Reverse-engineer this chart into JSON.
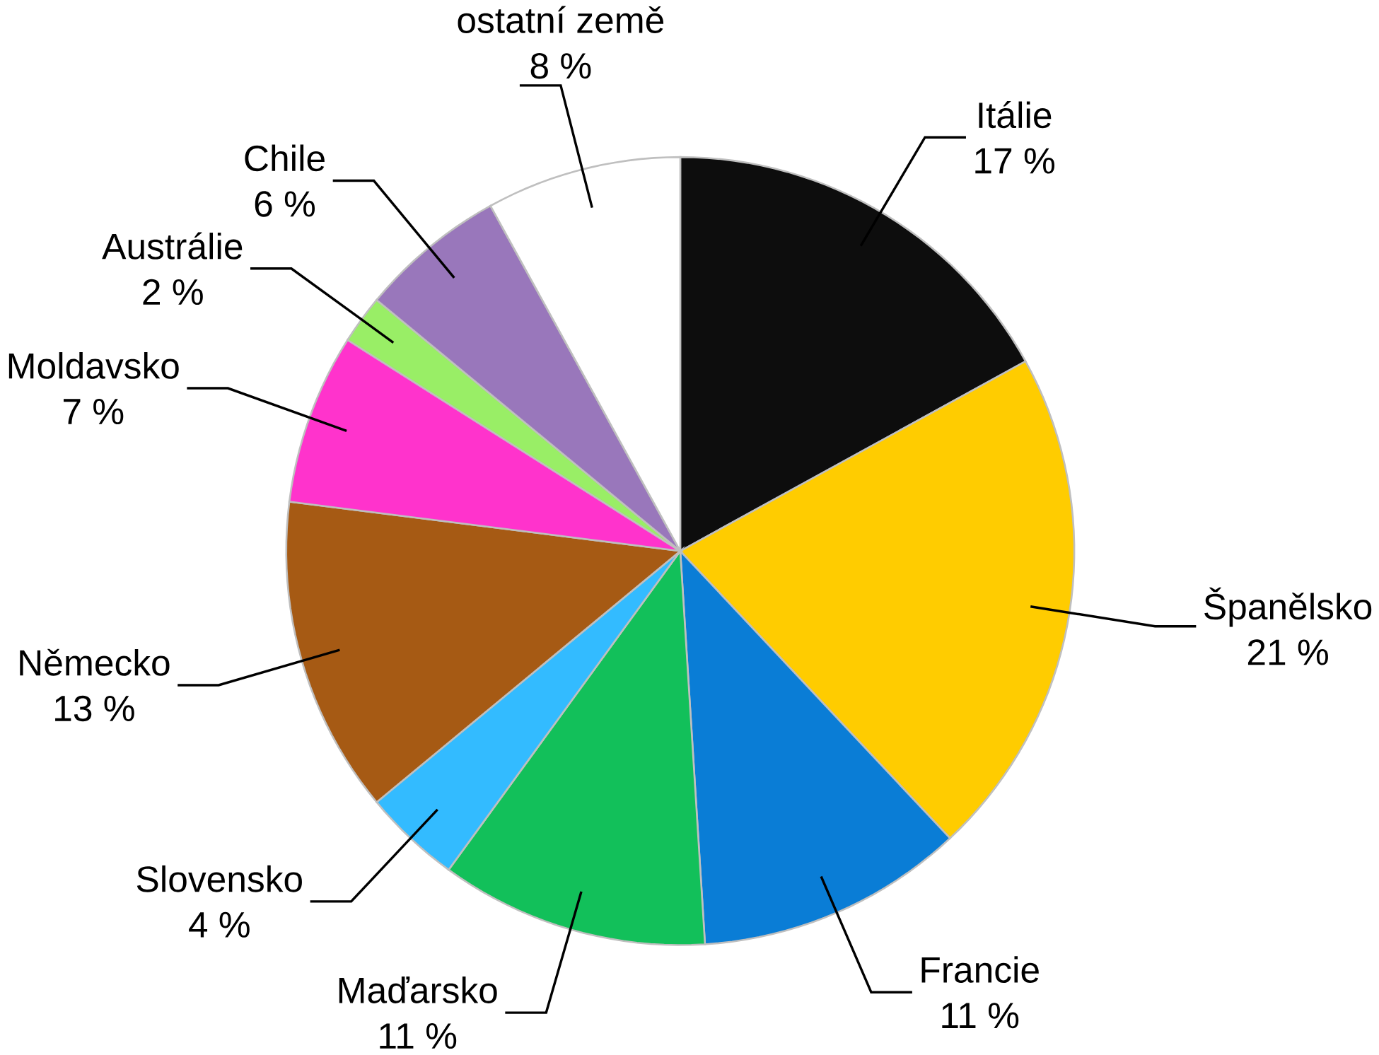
{
  "chart_data": {
    "type": "pie",
    "categories": [
      "Itálie",
      "Španělsko",
      "Francie",
      "Maďarsko",
      "Slovensko",
      "Německo",
      "Moldavsko",
      "Austrálie",
      "Chile",
      "ostatní země"
    ],
    "values": [
      17,
      21,
      11,
      11,
      4,
      13,
      7,
      2,
      6,
      8
    ],
    "value_labels": [
      "17 %",
      "21 %",
      "11 %",
      "11 %",
      "4 %",
      "13 %",
      "7 %",
      "2 %",
      "6 %",
      "8 %"
    ],
    "colors": [
      "#0d0d0d",
      "#ffcc00",
      "#0a7dd6",
      "#12c05a",
      "#33bbff",
      "#a65a14",
      "#ff33cc",
      "#99ee66",
      "#9977bb",
      "#ffffff"
    ]
  }
}
